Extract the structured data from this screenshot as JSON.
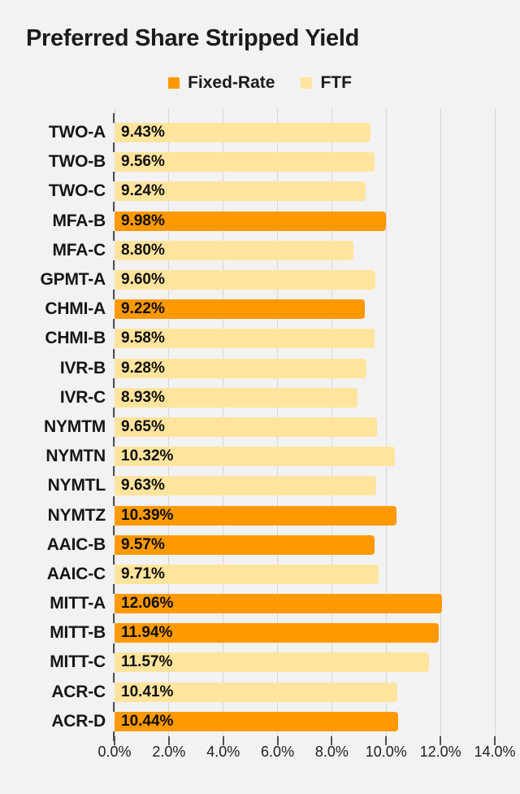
{
  "page": {
    "background": "#F2F2F2"
  },
  "header": {
    "title": "Preferred Share Stripped Yield"
  },
  "legend": {
    "items": [
      {
        "label": "Fixed-Rate",
        "color": "#FF9900"
      },
      {
        "label": "FTF",
        "color": "#FFE49D"
      }
    ]
  },
  "chart_data": {
    "type": "bar",
    "orientation": "horizontal",
    "title": "Preferred Share Stripped Yield",
    "categories": [
      "TWO-A",
      "TWO-B",
      "TWO-C",
      "MFA-B",
      "MFA-C",
      "GPMT-A",
      "CHMI-A",
      "CHMI-B",
      "IVR-B",
      "IVR-C",
      "NYMTM",
      "NYMTN",
      "NYMTL",
      "NYMTZ",
      "AAIC-B",
      "AAIC-C",
      "MITT-A",
      "MITT-B",
      "MITT-C",
      "ACR-C",
      "ACR-D"
    ],
    "values": [
      9.43,
      9.56,
      9.24,
      9.98,
      8.8,
      9.6,
      9.22,
      9.58,
      9.28,
      8.93,
      9.65,
      10.32,
      9.63,
      10.39,
      9.57,
      9.71,
      12.06,
      11.94,
      11.57,
      10.41,
      10.44
    ],
    "value_labels": [
      "9.43%",
      "9.56%",
      "9.24%",
      "9.98%",
      "8.80%",
      "9.60%",
      "9.22%",
      "9.58%",
      "9.28%",
      "8.93%",
      "9.65%",
      "10.32%",
      "9.63%",
      "10.39%",
      "9.57%",
      "9.71%",
      "12.06%",
      "11.94%",
      "11.57%",
      "10.41%",
      "10.44%"
    ],
    "series_of_point": [
      "FTF",
      "FTF",
      "FTF",
      "Fixed-Rate",
      "FTF",
      "FTF",
      "Fixed-Rate",
      "FTF",
      "FTF",
      "FTF",
      "FTF",
      "FTF",
      "FTF",
      "Fixed-Rate",
      "Fixed-Rate",
      "FTF",
      "Fixed-Rate",
      "Fixed-Rate",
      "FTF",
      "FTF",
      "Fixed-Rate"
    ],
    "series_colors": {
      "Fixed-Rate": "#FF9900",
      "FTF": "#FFE49D"
    },
    "xlabel": "",
    "ylabel": "",
    "xlim": [
      0,
      14
    ],
    "x_tick_labels": [
      "0.0%",
      "2.0%",
      "4.0%",
      "6.0%",
      "8.0%",
      "10.0%",
      "12.0%",
      "14.0%"
    ],
    "grid": true,
    "legend_position": "top",
    "colors": {
      "background": "#F2F2F2",
      "gridline": "#D7D7D7",
      "tick": "#515151",
      "text": "#1B1B1B"
    }
  }
}
